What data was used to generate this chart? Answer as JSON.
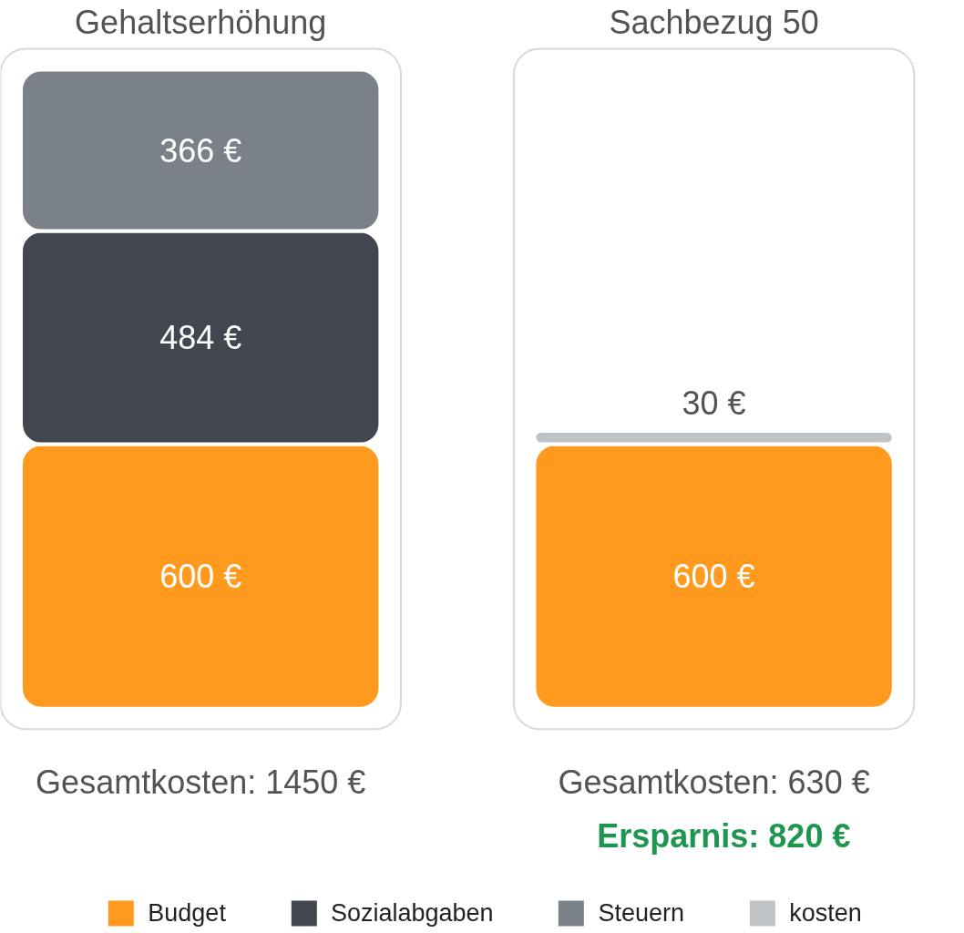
{
  "chart_data": {
    "type": "bar",
    "stacked": true,
    "categories": [
      "Gehaltserhöhung",
      "Sachbezug 50"
    ],
    "series": [
      {
        "name": "Budget",
        "color": "#ff9a1f",
        "values": [
          600,
          600
        ],
        "value_labels": [
          "600 €",
          "600 €"
        ]
      },
      {
        "name": "Sozialabgaben",
        "color": "#42464f",
        "values": [
          484,
          null
        ],
        "value_labels": [
          "484 €",
          null
        ]
      },
      {
        "name": "Steuern",
        "color": "#7b8189",
        "values": [
          366,
          null
        ],
        "value_labels": [
          "366 €",
          null
        ]
      },
      {
        "name": "kosten",
        "color": "#c0c3c6",
        "values": [
          null,
          30
        ],
        "value_labels": [
          null,
          "30 €"
        ]
      }
    ],
    "totals": [
      "Gesamtkosten: 1450 €",
      "Gesamtkosten: 630 €"
    ],
    "annotations": [
      "Ersparnis: 820 €"
    ],
    "legend": "bottom",
    "tick_labels": "x"
  }
}
